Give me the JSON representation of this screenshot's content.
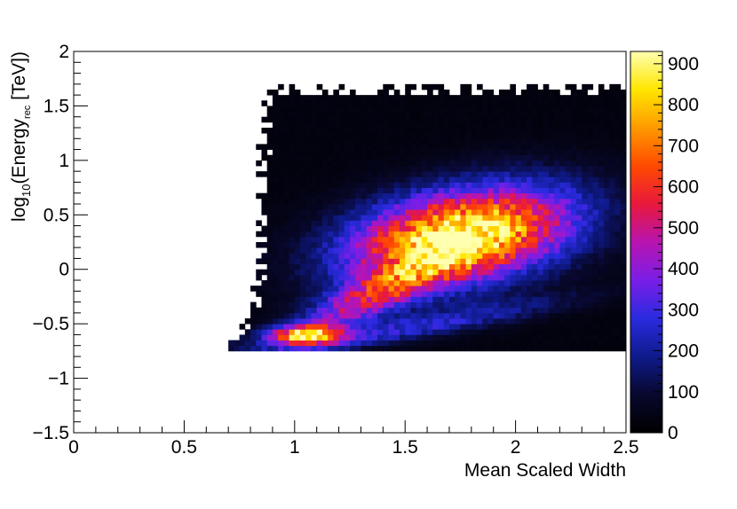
{
  "chart_data": {
    "type": "heatmap",
    "title": "",
    "xlabel": "Mean Scaled Width",
    "ylabel": {
      "prefix": "log",
      "subscript": "10",
      "mid": "(Energy",
      "subscript2": "rec",
      "suffix": " [TeV])"
    },
    "xlim": [
      0,
      2.5
    ],
    "ylim": [
      -1.5,
      2
    ],
    "x_ticks": [
      {
        "value": 0,
        "label": "0"
      },
      {
        "value": 0.5,
        "label": "0.5"
      },
      {
        "value": 1,
        "label": "1"
      },
      {
        "value": 1.5,
        "label": "1.5"
      },
      {
        "value": 2,
        "label": "2"
      },
      {
        "value": 2.5,
        "label": "2.5"
      }
    ],
    "y_ticks": [
      {
        "value": -1.5,
        "label": "−1.5"
      },
      {
        "value": -1,
        "label": "−1"
      },
      {
        "value": -0.5,
        "label": "−0.5"
      },
      {
        "value": 0,
        "label": "0"
      },
      {
        "value": 0.5,
        "label": "0.5"
      },
      {
        "value": 1,
        "label": "1"
      },
      {
        "value": 1.5,
        "label": "1.5"
      },
      {
        "value": 2,
        "label": "2"
      }
    ],
    "colorbar": {
      "zlim": [
        0,
        930
      ],
      "ticks": [
        {
          "value": 0,
          "label": "0"
        },
        {
          "value": 100,
          "label": "100"
        },
        {
          "value": 200,
          "label": "200"
        },
        {
          "value": 300,
          "label": "300"
        },
        {
          "value": 400,
          "label": "400"
        },
        {
          "value": 500,
          "label": "500"
        },
        {
          "value": 600,
          "label": "600"
        },
        {
          "value": 700,
          "label": "700"
        },
        {
          "value": 800,
          "label": "800"
        },
        {
          "value": 900,
          "label": "900"
        }
      ],
      "palette": [
        "#000000",
        "#08082e",
        "#0f1a8a",
        "#2a2ae0",
        "#7a1ee6",
        "#b814b0",
        "#e8183c",
        "#ff4a00",
        "#ff9a00",
        "#ffe600",
        "#ffffb0"
      ]
    },
    "bins": {
      "x_width": 0.025,
      "y_width": 0.05
    },
    "distribution": {
      "peak_main": {
        "x": 1.75,
        "y": 0.3,
        "count": 930
      },
      "peak_secondary": {
        "x": 1.05,
        "y": -0.6,
        "count": 700
      },
      "background_level": 30,
      "x_range": [
        0.7,
        2.5
      ],
      "y_range": [
        -0.75,
        1.7
      ]
    },
    "grid": false,
    "legend": "none"
  }
}
